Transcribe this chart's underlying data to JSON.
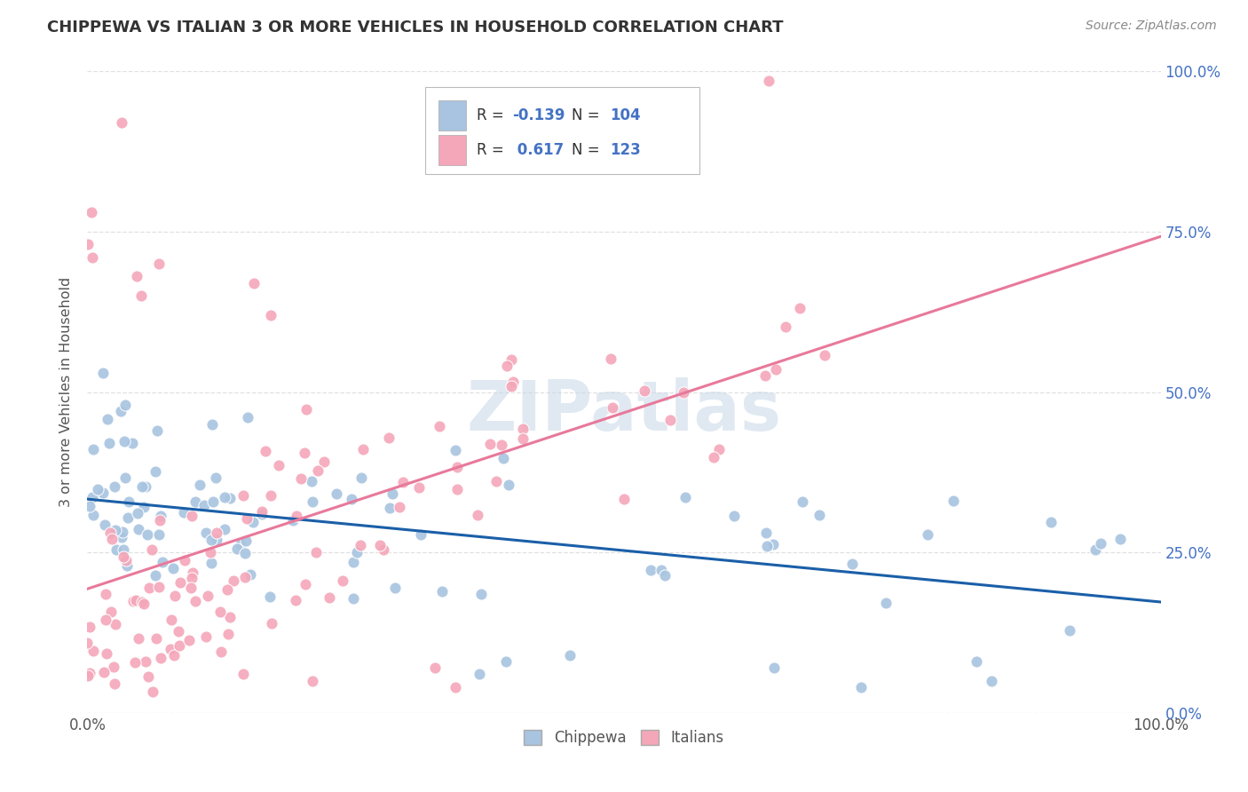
{
  "title": "CHIPPEWA VS ITALIAN 3 OR MORE VEHICLES IN HOUSEHOLD CORRELATION CHART",
  "source": "Source: ZipAtlas.com",
  "ylabel": "3 or more Vehicles in Household",
  "xmin": 0.0,
  "xmax": 1.0,
  "ymin": 0.0,
  "ymax": 1.0,
  "ytick_positions": [
    0.0,
    0.25,
    0.5,
    0.75,
    1.0
  ],
  "chippewa_color": "#a8c4e0",
  "italian_color": "#f4a7b9",
  "chippewa_line_color": "#1a5fa8",
  "italian_line_color": "#e8799a",
  "chippewa_R": -0.139,
  "chippewa_N": 104,
  "italian_R": 0.617,
  "italian_N": 123,
  "watermark": "ZIPatlas",
  "background_color": "#ffffff",
  "grid_color": "#dddddd",
  "title_color": "#333333",
  "axis_color": "#555555",
  "blue_text_color": "#4472c4",
  "source_color": "#888888"
}
